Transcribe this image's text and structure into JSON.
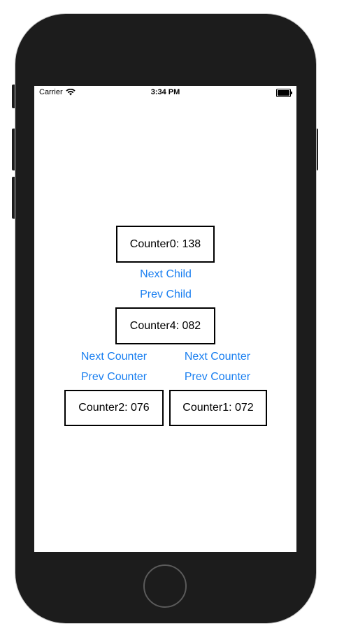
{
  "status_bar": {
    "carrier": "Carrier",
    "time": "3:34 PM",
    "icons": [
      "wifi-icon",
      "battery-icon"
    ]
  },
  "counters": {
    "top": "Counter0: 138",
    "middle": "Counter4: 082",
    "bottom_left": "Counter2: 076",
    "bottom_right": "Counter1: 072"
  },
  "buttons": {
    "next_child": "Next Child",
    "prev_child": "Prev Child",
    "next_counter_left": "Next Counter",
    "prev_counter_left": "Prev Counter",
    "next_counter_right": "Next Counter",
    "prev_counter_right": "Prev Counter"
  },
  "colors": {
    "phone_frame": "#1c1c1c",
    "link": "#1a7ff0"
  }
}
